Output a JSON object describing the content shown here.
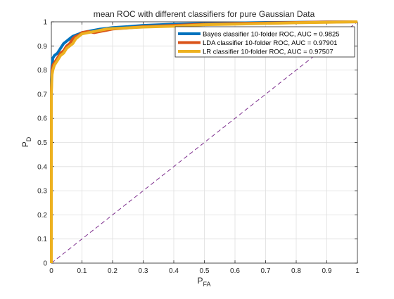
{
  "chart_data": {
    "type": "line",
    "title": "mean ROC with different classifiers for pure Gaussian Data",
    "xlabel": {
      "main": "P",
      "sub": "FA"
    },
    "ylabel": {
      "main": "P",
      "sub": "D"
    },
    "xlim": [
      0,
      1
    ],
    "ylim": [
      0,
      1
    ],
    "xticks": [
      "0",
      "0.1",
      "0.2",
      "0.3",
      "0.4",
      "0.5",
      "0.6",
      "0.7",
      "0.8",
      "0.9",
      "1"
    ],
    "yticks": [
      "0",
      "0.1",
      "0.2",
      "0.3",
      "0.4",
      "0.5",
      "0.6",
      "0.7",
      "0.8",
      "0.9",
      "1"
    ],
    "grid": true,
    "legend_position": "top-right",
    "series": [
      {
        "name": "Bayes classifier 10-folder ROC, AUC = 0.9825",
        "color": "#0072bd",
        "x": [
          0,
          0,
          0.002,
          0.005,
          0.01,
          0.02,
          0.03,
          0.04,
          0.05,
          0.06,
          0.07,
          0.08,
          0.09,
          0.1,
          0.12,
          0.14,
          0.16,
          0.18,
          0.2,
          0.25,
          0.3,
          0.4,
          0.5,
          0.6,
          0.7,
          0.8,
          0.9,
          1
        ],
        "y": [
          0,
          0.76,
          0.82,
          0.85,
          0.86,
          0.87,
          0.89,
          0.91,
          0.92,
          0.93,
          0.94,
          0.945,
          0.95,
          0.955,
          0.96,
          0.965,
          0.97,
          0.973,
          0.976,
          0.98,
          0.985,
          0.99,
          0.993,
          0.995,
          0.997,
          0.998,
          0.999,
          1
        ]
      },
      {
        "name": "LDA classifier 10-folder ROC, AUC = 0.97901",
        "color": "#d95319",
        "x": [
          0,
          0,
          0.002,
          0.005,
          0.01,
          0.02,
          0.03,
          0.04,
          0.05,
          0.06,
          0.07,
          0.08,
          0.09,
          0.1,
          0.12,
          0.14,
          0.16,
          0.18,
          0.2,
          0.25,
          0.3,
          0.4,
          0.5,
          0.6,
          0.7,
          0.8,
          0.9,
          1
        ],
        "y": [
          0,
          0.72,
          0.8,
          0.82,
          0.83,
          0.85,
          0.87,
          0.88,
          0.9,
          0.91,
          0.93,
          0.94,
          0.945,
          0.955,
          0.96,
          0.955,
          0.96,
          0.965,
          0.97,
          0.975,
          0.98,
          0.985,
          0.99,
          0.993,
          0.995,
          0.997,
          0.999,
          1
        ]
      },
      {
        "name": "LR classifier 10-folder ROC, AUC = 0.97507",
        "color": "#edb120",
        "x": [
          0,
          0,
          0.002,
          0.005,
          0.01,
          0.02,
          0.03,
          0.04,
          0.05,
          0.06,
          0.07,
          0.08,
          0.09,
          0.1,
          0.12,
          0.14,
          0.16,
          0.18,
          0.2,
          0.25,
          0.3,
          0.4,
          0.5,
          0.6,
          0.7,
          0.8,
          0.9,
          1
        ],
        "y": [
          0,
          0.7,
          0.78,
          0.8,
          0.82,
          0.84,
          0.86,
          0.87,
          0.89,
          0.9,
          0.91,
          0.93,
          0.94,
          0.95,
          0.955,
          0.96,
          0.965,
          0.97,
          0.972,
          0.975,
          0.978,
          0.982,
          0.988,
          0.99,
          0.993,
          0.996,
          0.998,
          1
        ]
      }
    ],
    "reference_line": {
      "x": [
        0,
        1
      ],
      "y": [
        0,
        1
      ],
      "color": "#7e2f8e",
      "style": "dashed"
    }
  }
}
